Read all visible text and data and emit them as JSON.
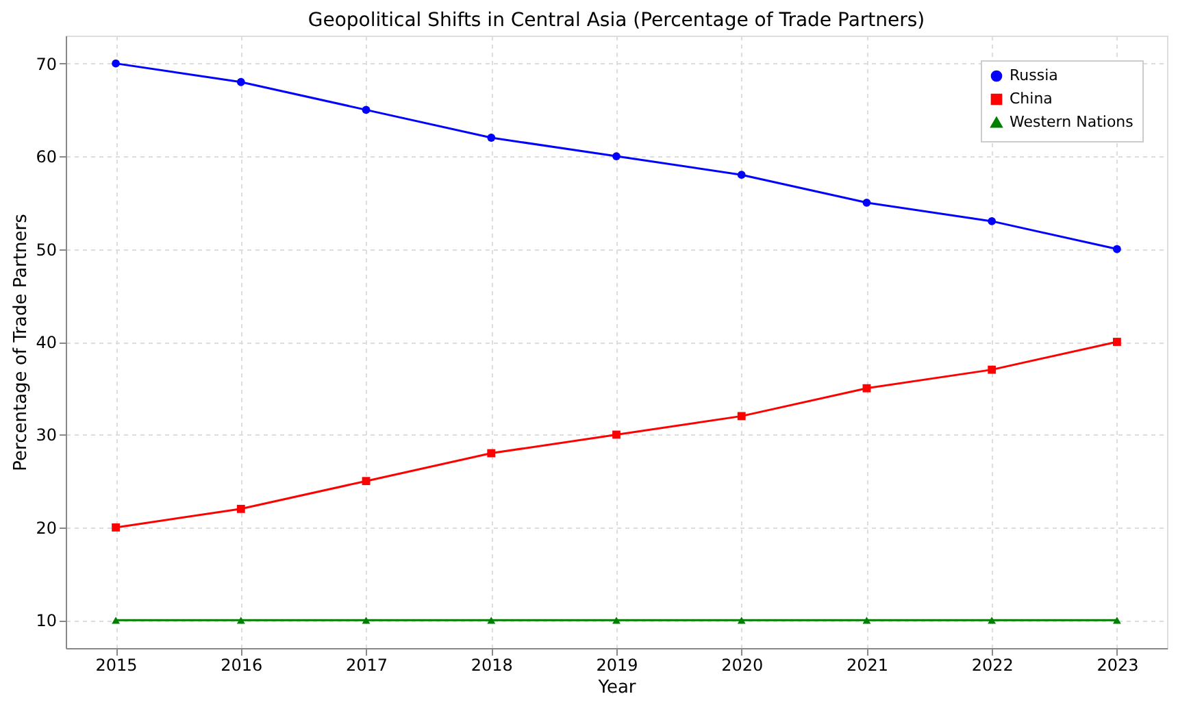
{
  "chart_data": {
    "type": "line",
    "title": "Geopolitical Shifts in Central Asia (Percentage of Trade Partners)",
    "xlabel": "Year",
    "ylabel": "Percentage of Trade Partners",
    "x": [
      2015,
      2016,
      2017,
      2018,
      2019,
      2020,
      2021,
      2022,
      2023
    ],
    "series": [
      {
        "name": "Russia",
        "color": "#0000ff",
        "marker": "circle",
        "values": [
          70,
          68,
          65,
          62,
          60,
          58,
          55,
          53,
          50
        ]
      },
      {
        "name": "China",
        "color": "#ff0000",
        "marker": "square",
        "values": [
          20,
          22,
          25,
          28,
          30,
          32,
          35,
          37,
          40
        ]
      },
      {
        "name": "Western Nations",
        "color": "#008000",
        "marker": "triangle",
        "values": [
          10,
          10,
          10,
          10,
          10,
          10,
          10,
          10,
          10
        ]
      }
    ],
    "xlim": [
      2014.6,
      2023.4
    ],
    "xticks": [
      2015,
      2016,
      2017,
      2018,
      2019,
      2020,
      2021,
      2022,
      2023
    ],
    "ylim": [
      7,
      73
    ],
    "yticks": [
      10,
      20,
      30,
      40,
      50,
      60,
      70
    ],
    "grid": true,
    "legend": "top right",
    "line_style": "solid"
  }
}
